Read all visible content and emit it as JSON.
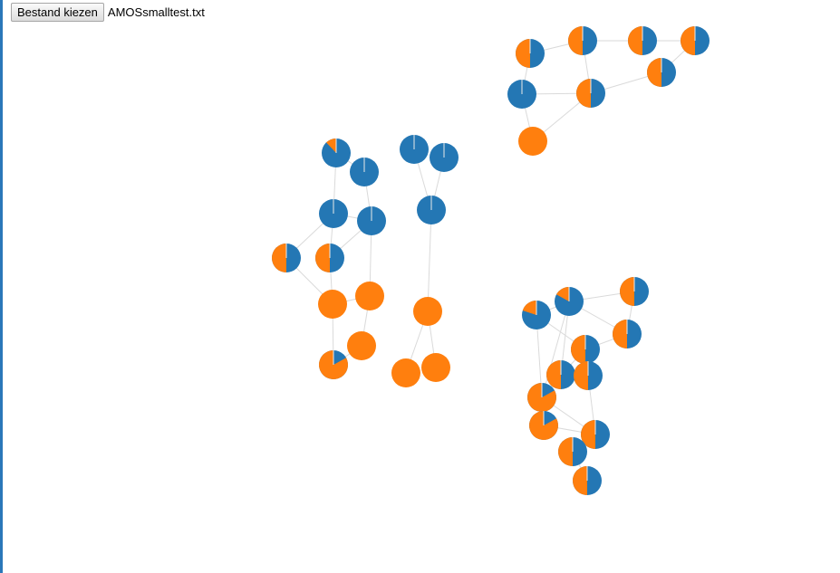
{
  "file_picker": {
    "button_label": "Bestand kiezen",
    "file_name": "AMOSsmalltest.txt"
  },
  "colors": {
    "series_a": "#2477b4",
    "series_b": "#ff7f0e",
    "link": "#dadada",
    "left_rule": "#2a77b9"
  }
}
